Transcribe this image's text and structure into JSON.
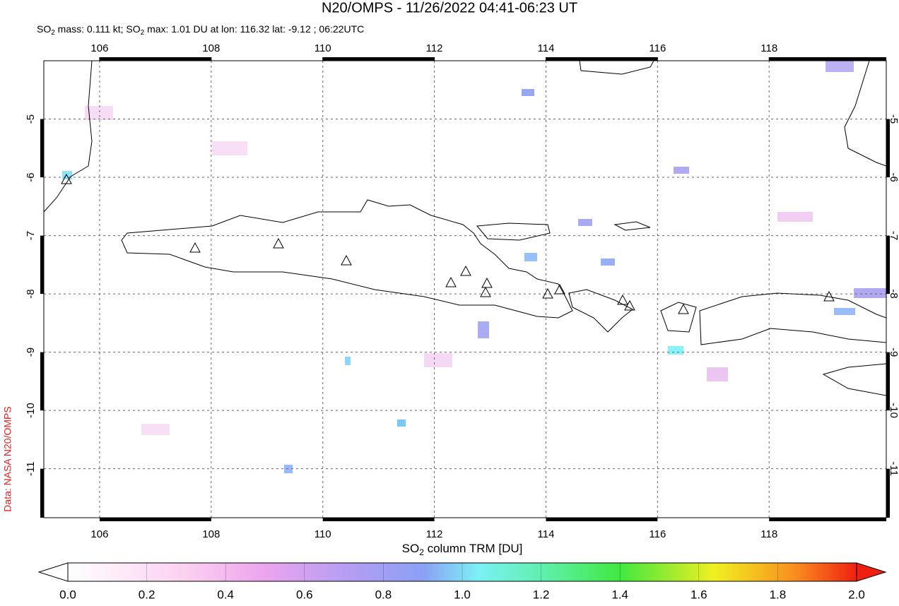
{
  "header": {
    "title": "N20/OMPS - 11/26/2022 04:41-06:23 UT",
    "subtitle_parts": [
      "SO",
      "2",
      " mass: 0.111 kt; SO",
      "2",
      " max: 1.01 DU at lon: 116.32 lat: -9.12 ; 06:22UTC"
    ]
  },
  "map": {
    "lon_range": [
      105,
      120.1
    ],
    "lat_range": [
      -4,
      -11.84
    ],
    "lon_ticks": [
      106,
      108,
      110,
      112,
      114,
      116,
      118
    ],
    "lat_ticks": [
      -5,
      -6,
      -7,
      -8,
      -9,
      -10,
      -11
    ],
    "grid": true
  },
  "colorbar": {
    "label_parts": [
      "SO",
      "2",
      " column TRM [DU]"
    ],
    "range": [
      0,
      2
    ],
    "ticks": [
      {
        "value": 0,
        "label": "0.0"
      },
      0.2,
      0.4,
      0.6,
      0.8,
      {
        "value": 1,
        "label": "1.0"
      },
      1.2,
      1.4,
      1.6,
      1.8,
      {
        "value": 2,
        "label": "2.0"
      }
    ]
  },
  "source": "Data: NASA N20/OMPS"
}
